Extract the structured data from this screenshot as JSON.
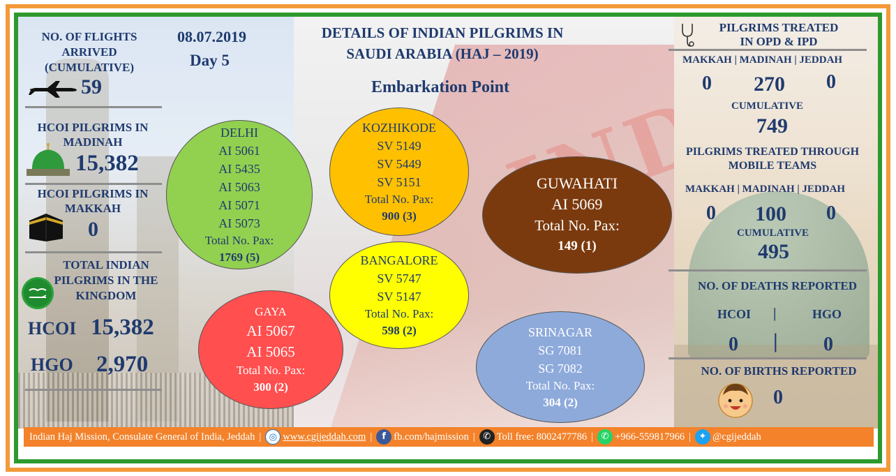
{
  "header": {
    "title": "DETAILS OF INDIAN PILGRIMS IN SAUDI ARABIA (HAJ – 2019)",
    "title_line1": "DETAILS OF INDIAN PILGRIMS IN",
    "title_line2": "SAUDI ARABIA (HAJ – 2019)",
    "subtitle": "Embarkation Point",
    "date": "08.07.2019",
    "day": "Day 5"
  },
  "left_panel": {
    "flights": {
      "label": "NO. OF FLIGHTS ARRIVED (CUMULATIVE)",
      "value": "59"
    },
    "hcoi_madinah": {
      "label": "HCOI PILGRIMS IN MADINAH",
      "value": "15,382"
    },
    "hcoi_makkah": {
      "label": "HCOI PILGRIMS IN MAKKAH",
      "value": "0"
    },
    "total_kingdom": {
      "label": "TOTAL INDIAN PILGRIMS IN THE KINGDOM",
      "hcoi_label": "HCOI",
      "hcoi_value": "15,382",
      "hgo_label": "HGO",
      "hgo_value": "2,970"
    }
  },
  "embarkation_points": {
    "delhi": {
      "name": "DELHI",
      "flights": [
        "AI 5061",
        "AI 5435",
        "AI 5063",
        "AI 5071",
        "AI 5073"
      ],
      "total_label": "Total No. Pax:",
      "total": "1769 (5)",
      "color": "#92d050"
    },
    "kozhikode": {
      "name": "KOZHIKODE",
      "flights": [
        "SV 5149",
        "SV 5449",
        "SV 5151"
      ],
      "total_label": "Total No. Pax:",
      "total": "900 (3)",
      "color": "#ffc000"
    },
    "bangalore": {
      "name": "BANGALORE",
      "flights": [
        "SV 5747",
        "SV 5147"
      ],
      "total_label": "Total No. Pax:",
      "total": "598 (2)",
      "color": "#ffff00"
    },
    "gaya": {
      "name": "GAYA",
      "flights": [
        "AI 5067",
        "AI 5065"
      ],
      "total_label": "Total No. Pax:",
      "total": "300 (2)",
      "color": "#ff4f4f"
    },
    "guwahati": {
      "name": "GUWAHATI",
      "flights": [
        "AI 5069"
      ],
      "total_label": "Total No. Pax:",
      "total": "149 (1)",
      "color": "#7b3a0e"
    },
    "srinagar": {
      "name": "SRINAGAR",
      "flights": [
        "SG 7081",
        "SG 7082"
      ],
      "total_label": "Total No. Pax:",
      "total": "304 (2)",
      "color": "#8eaadb"
    }
  },
  "right_panel": {
    "opd": {
      "title_line1": "PILGRIMS TREATED",
      "title_line2": "IN OPD & IPD",
      "cities": "MAKKAH | MADINAH | JEDDAH",
      "makkah": "0",
      "madinah": "270",
      "jeddah": "0",
      "cumulative_label": "CUMULATIVE",
      "cumulative": "749"
    },
    "mobile": {
      "title_line1": "PILGRIMS TREATED THROUGH",
      "title_line2": "MOBILE TEAMS",
      "cities": "MAKKAH | MADINAH | JEDDAH",
      "makkah": "0",
      "madinah": "100",
      "jeddah": "0",
      "cumulative_label": "CUMULATIVE",
      "cumulative": "495"
    },
    "deaths": {
      "title": "NO. OF DEATHS REPORTED",
      "hcoi_label": "HCOI",
      "sep": "|",
      "hgo_label": "HGO",
      "hcoi_value": "0",
      "hgo_value": "0"
    },
    "births": {
      "title": "NO. OF BIRTHS REPORTED",
      "value": "0"
    }
  },
  "footer": {
    "org": "Indian Haj Mission, Consulate General of India, Jeddah",
    "website": "www.cgijeddah.com",
    "facebook": "fb.com/hajmission",
    "tollfree": "Toll free: 8002477786",
    "whatsapp": "+966-559817966",
    "twitter": "@cgijeddah",
    "separator": "|"
  },
  "icons": {
    "plane": "plane-icon",
    "mosque": "green-dome-mosque-icon",
    "kaaba": "kaaba-icon",
    "emblem": "saudi-flag-emblem-icon",
    "stethoscope": "stethoscope-icon",
    "baby": "baby-face-icon",
    "globe": "globe-icon",
    "facebook": "facebook-icon",
    "phone": "phone-icon",
    "whatsapp": "whatsapp-icon",
    "twitter": "twitter-icon"
  },
  "colors": {
    "frame_outer": "#f39a3b",
    "frame_inner": "#2e9a2e",
    "text_primary": "#1f3a6e",
    "footer_bg": "#f3822a"
  }
}
